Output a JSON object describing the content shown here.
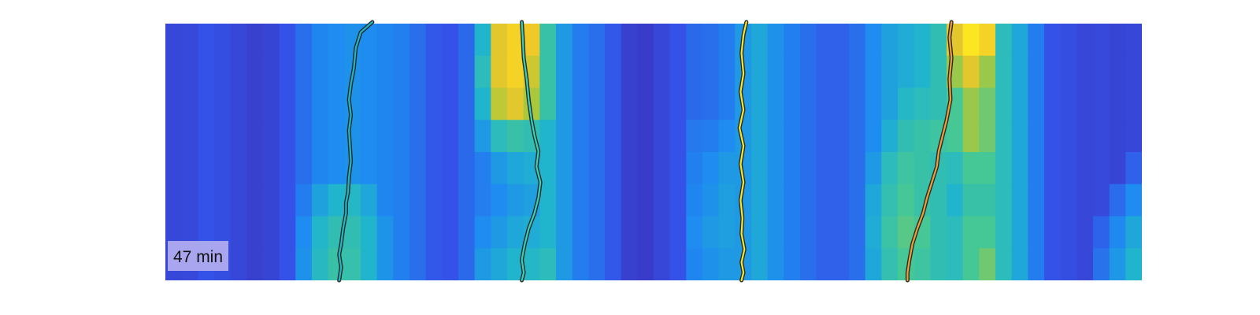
{
  "chart_data": {
    "type": "heatmap",
    "title": "",
    "xlabel": "",
    "ylabel": "",
    "colormap": "parula",
    "colors": {
      "low": "#3e26a8",
      "mid_low": "#2f64f0",
      "mid": "#1fb7c3",
      "mid_high": "#a6c83a",
      "high": "#fbe022",
      "trace_outline": "#2a2a2a"
    },
    "x_columns": 60,
    "y_rows": 8,
    "column_profile": [
      0.15,
      0.16,
      0.2,
      0.18,
      0.15,
      0.12,
      0.14,
      0.2,
      0.3,
      0.38,
      0.4,
      0.42,
      0.4,
      0.38,
      0.36,
      0.3,
      0.22,
      0.2,
      0.28,
      0.55,
      0.8,
      0.85,
      0.82,
      0.65,
      0.45,
      0.35,
      0.3,
      0.22,
      0.12,
      0.1,
      0.15,
      0.2,
      0.28,
      0.3,
      0.35,
      0.45,
      0.5,
      0.42,
      0.36,
      0.3,
      0.25,
      0.25,
      0.3,
      0.4,
      0.48,
      0.52,
      0.55,
      0.62,
      0.7,
      0.8,
      0.75,
      0.6,
      0.5,
      0.35,
      0.2,
      0.18,
      0.15,
      0.16,
      0.14,
      0.15
    ],
    "row_modulation": [
      [
        0,
        0,
        0,
        0,
        0,
        0,
        0,
        0,
        0,
        0,
        0,
        0,
        0,
        0,
        0,
        0,
        0,
        0,
        0,
        0,
        0.1,
        0.1,
        0.1,
        0,
        0,
        0,
        0,
        0,
        0,
        0,
        0,
        0,
        0,
        0,
        0,
        0,
        0,
        0,
        0,
        0,
        0,
        0,
        0,
        0,
        0,
        0,
        0,
        0,
        0.2,
        0.2,
        0.2,
        0,
        0,
        0,
        0,
        0,
        0,
        0,
        0,
        0
      ],
      [
        0,
        0,
        0,
        0,
        0,
        0,
        0,
        0,
        0,
        0,
        0,
        0,
        0,
        0,
        0,
        0,
        0,
        0,
        0,
        0.05,
        0.1,
        0.1,
        0.05,
        0,
        0,
        0,
        0,
        0,
        0,
        0,
        0,
        0,
        0,
        0,
        0,
        0,
        0,
        0,
        0,
        0,
        0,
        0,
        0,
        0,
        0,
        0,
        0,
        0,
        0.1,
        0.1,
        0.05,
        0,
        0,
        0,
        0,
        0,
        0,
        0,
        0,
        0
      ],
      [
        0,
        0,
        0,
        0,
        0,
        0,
        0,
        0,
        0,
        0,
        0,
        0,
        0,
        0,
        0,
        0,
        0,
        0,
        0,
        0,
        0.05,
        0.05,
        0,
        0,
        0,
        0,
        0,
        0,
        0,
        0,
        0,
        0,
        0,
        0,
        0,
        0,
        0,
        0,
        0,
        0,
        0,
        0,
        0,
        0,
        0,
        0.05,
        0.05,
        0,
        0,
        0,
        0,
        0,
        0,
        0,
        0,
        0,
        0,
        0,
        0,
        0
      ],
      [
        0,
        0,
        0,
        0,
        0,
        0,
        0,
        0,
        0,
        0,
        0,
        0,
        0,
        0,
        0,
        0,
        0,
        0,
        0,
        -0.1,
        -0.2,
        -0.2,
        -0.2,
        -0.1,
        0,
        0,
        0,
        0,
        0,
        0,
        0,
        0,
        0.05,
        0.05,
        0.05,
        0,
        0,
        0,
        0,
        0,
        0,
        0,
        0,
        0,
        0.05,
        0.1,
        0.1,
        0.05,
        0,
        0,
        0,
        0,
        0,
        0,
        0,
        0,
        0,
        0,
        0,
        0
      ],
      [
        0,
        0,
        0,
        0,
        0,
        0,
        0,
        0,
        0,
        0,
        0,
        0,
        0,
        0,
        0,
        0,
        0,
        0,
        0,
        -0.2,
        -0.35,
        -0.35,
        -0.3,
        -0.1,
        0,
        0,
        0,
        0,
        0,
        0,
        0,
        0,
        0.08,
        0.1,
        0.1,
        0,
        0,
        0,
        0,
        0,
        0,
        0,
        0,
        0.05,
        0.12,
        0.15,
        0.1,
        0,
        -0.1,
        -0.1,
        -0.05,
        0,
        0,
        0,
        0,
        0,
        0,
        0,
        0,
        0.1
      ],
      [
        0,
        0,
        0,
        0,
        0,
        0,
        0,
        0,
        0.05,
        0.1,
        0.15,
        0.15,
        0.1,
        0,
        0,
        0,
        0,
        0,
        0,
        -0.2,
        -0.4,
        -0.4,
        -0.35,
        -0.1,
        0,
        0,
        0,
        0,
        0,
        0,
        0,
        0,
        0.1,
        0.12,
        0.12,
        0,
        0,
        0,
        0,
        0,
        0,
        0,
        0,
        0.1,
        0.15,
        0.18,
        0.1,
        0,
        -0.15,
        -0.15,
        -0.1,
        0,
        0,
        0,
        0,
        0,
        0,
        0,
        0.15,
        0.25
      ],
      [
        0,
        0,
        0,
        0,
        0,
        0,
        0,
        0,
        0.1,
        0.18,
        0.22,
        0.2,
        0.15,
        0.05,
        0,
        0,
        0,
        0,
        0,
        -0.15,
        -0.35,
        -0.35,
        -0.3,
        -0.1,
        0,
        0,
        0,
        0,
        0,
        0,
        0,
        0,
        0.12,
        0.15,
        0.12,
        0,
        0,
        0,
        0,
        0,
        0,
        0,
        0,
        0.12,
        0.18,
        0.2,
        0.15,
        0,
        -0.1,
        -0.1,
        -0.05,
        0,
        0,
        0,
        0,
        0,
        0,
        0.1,
        0.25,
        0.35
      ],
      [
        0,
        0,
        0,
        0,
        0,
        0,
        0,
        0,
        0.12,
        0.2,
        0.25,
        0.22,
        0.15,
        0.05,
        0,
        0,
        0,
        0,
        0,
        -0.1,
        -0.3,
        -0.3,
        -0.25,
        -0.05,
        0,
        0,
        0,
        0,
        0,
        0,
        0,
        0,
        0.1,
        0.12,
        0.1,
        0,
        0,
        0,
        0,
        0,
        0,
        0,
        0,
        0.1,
        0.15,
        0.18,
        0.12,
        0,
        -0.1,
        -0.1,
        0,
        0,
        0,
        0,
        0,
        0,
        0,
        0.15,
        0.3,
        0.4
      ]
    ],
    "traces": [
      {
        "color": "#1fb7c3",
        "x": [
          0.212,
          0.2,
          0.195,
          0.193,
          0.19,
          0.188,
          0.19,
          0.188,
          0.189,
          0.19,
          0.188,
          0.187,
          0.185,
          0.185,
          0.182,
          0.18,
          0.178,
          0.18,
          0.178
        ],
        "y": [
          0.0,
          0.04,
          0.1,
          0.18,
          0.24,
          0.3,
          0.36,
          0.42,
          0.48,
          0.54,
          0.6,
          0.66,
          0.7,
          0.74,
          0.8,
          0.86,
          0.9,
          0.95,
          1.0
        ]
      },
      {
        "color": "#37d0b8",
        "x": [
          0.365,
          0.366,
          0.367,
          0.37,
          0.372,
          0.375,
          0.378,
          0.382,
          0.38,
          0.384,
          0.382,
          0.378,
          0.372,
          0.368,
          0.365,
          0.367,
          0.365
        ],
        "y": [
          0.0,
          0.06,
          0.14,
          0.22,
          0.3,
          0.38,
          0.44,
          0.5,
          0.56,
          0.62,
          0.68,
          0.74,
          0.8,
          0.86,
          0.92,
          0.97,
          1.0
        ]
      },
      {
        "color": "#f3e82a",
        "x": [
          0.595,
          0.592,
          0.59,
          0.592,
          0.589,
          0.592,
          0.588,
          0.592,
          0.589,
          0.592,
          0.589,
          0.591,
          0.59,
          0.593,
          0.59,
          0.592,
          0.59
        ],
        "y": [
          0.0,
          0.05,
          0.12,
          0.2,
          0.27,
          0.34,
          0.41,
          0.48,
          0.55,
          0.62,
          0.69,
          0.76,
          0.82,
          0.88,
          0.93,
          0.97,
          1.0
        ]
      },
      {
        "color": "#f0a033",
        "x": [
          0.805,
          0.803,
          0.805,
          0.803,
          0.804,
          0.8,
          0.796,
          0.792,
          0.79,
          0.785,
          0.78,
          0.776,
          0.77,
          0.765,
          0.762,
          0.76,
          0.76
        ],
        "y": [
          0.0,
          0.06,
          0.14,
          0.22,
          0.3,
          0.38,
          0.44,
          0.5,
          0.56,
          0.62,
          0.68,
          0.74,
          0.8,
          0.86,
          0.92,
          0.97,
          1.0
        ]
      }
    ],
    "time_label": "47 min"
  }
}
